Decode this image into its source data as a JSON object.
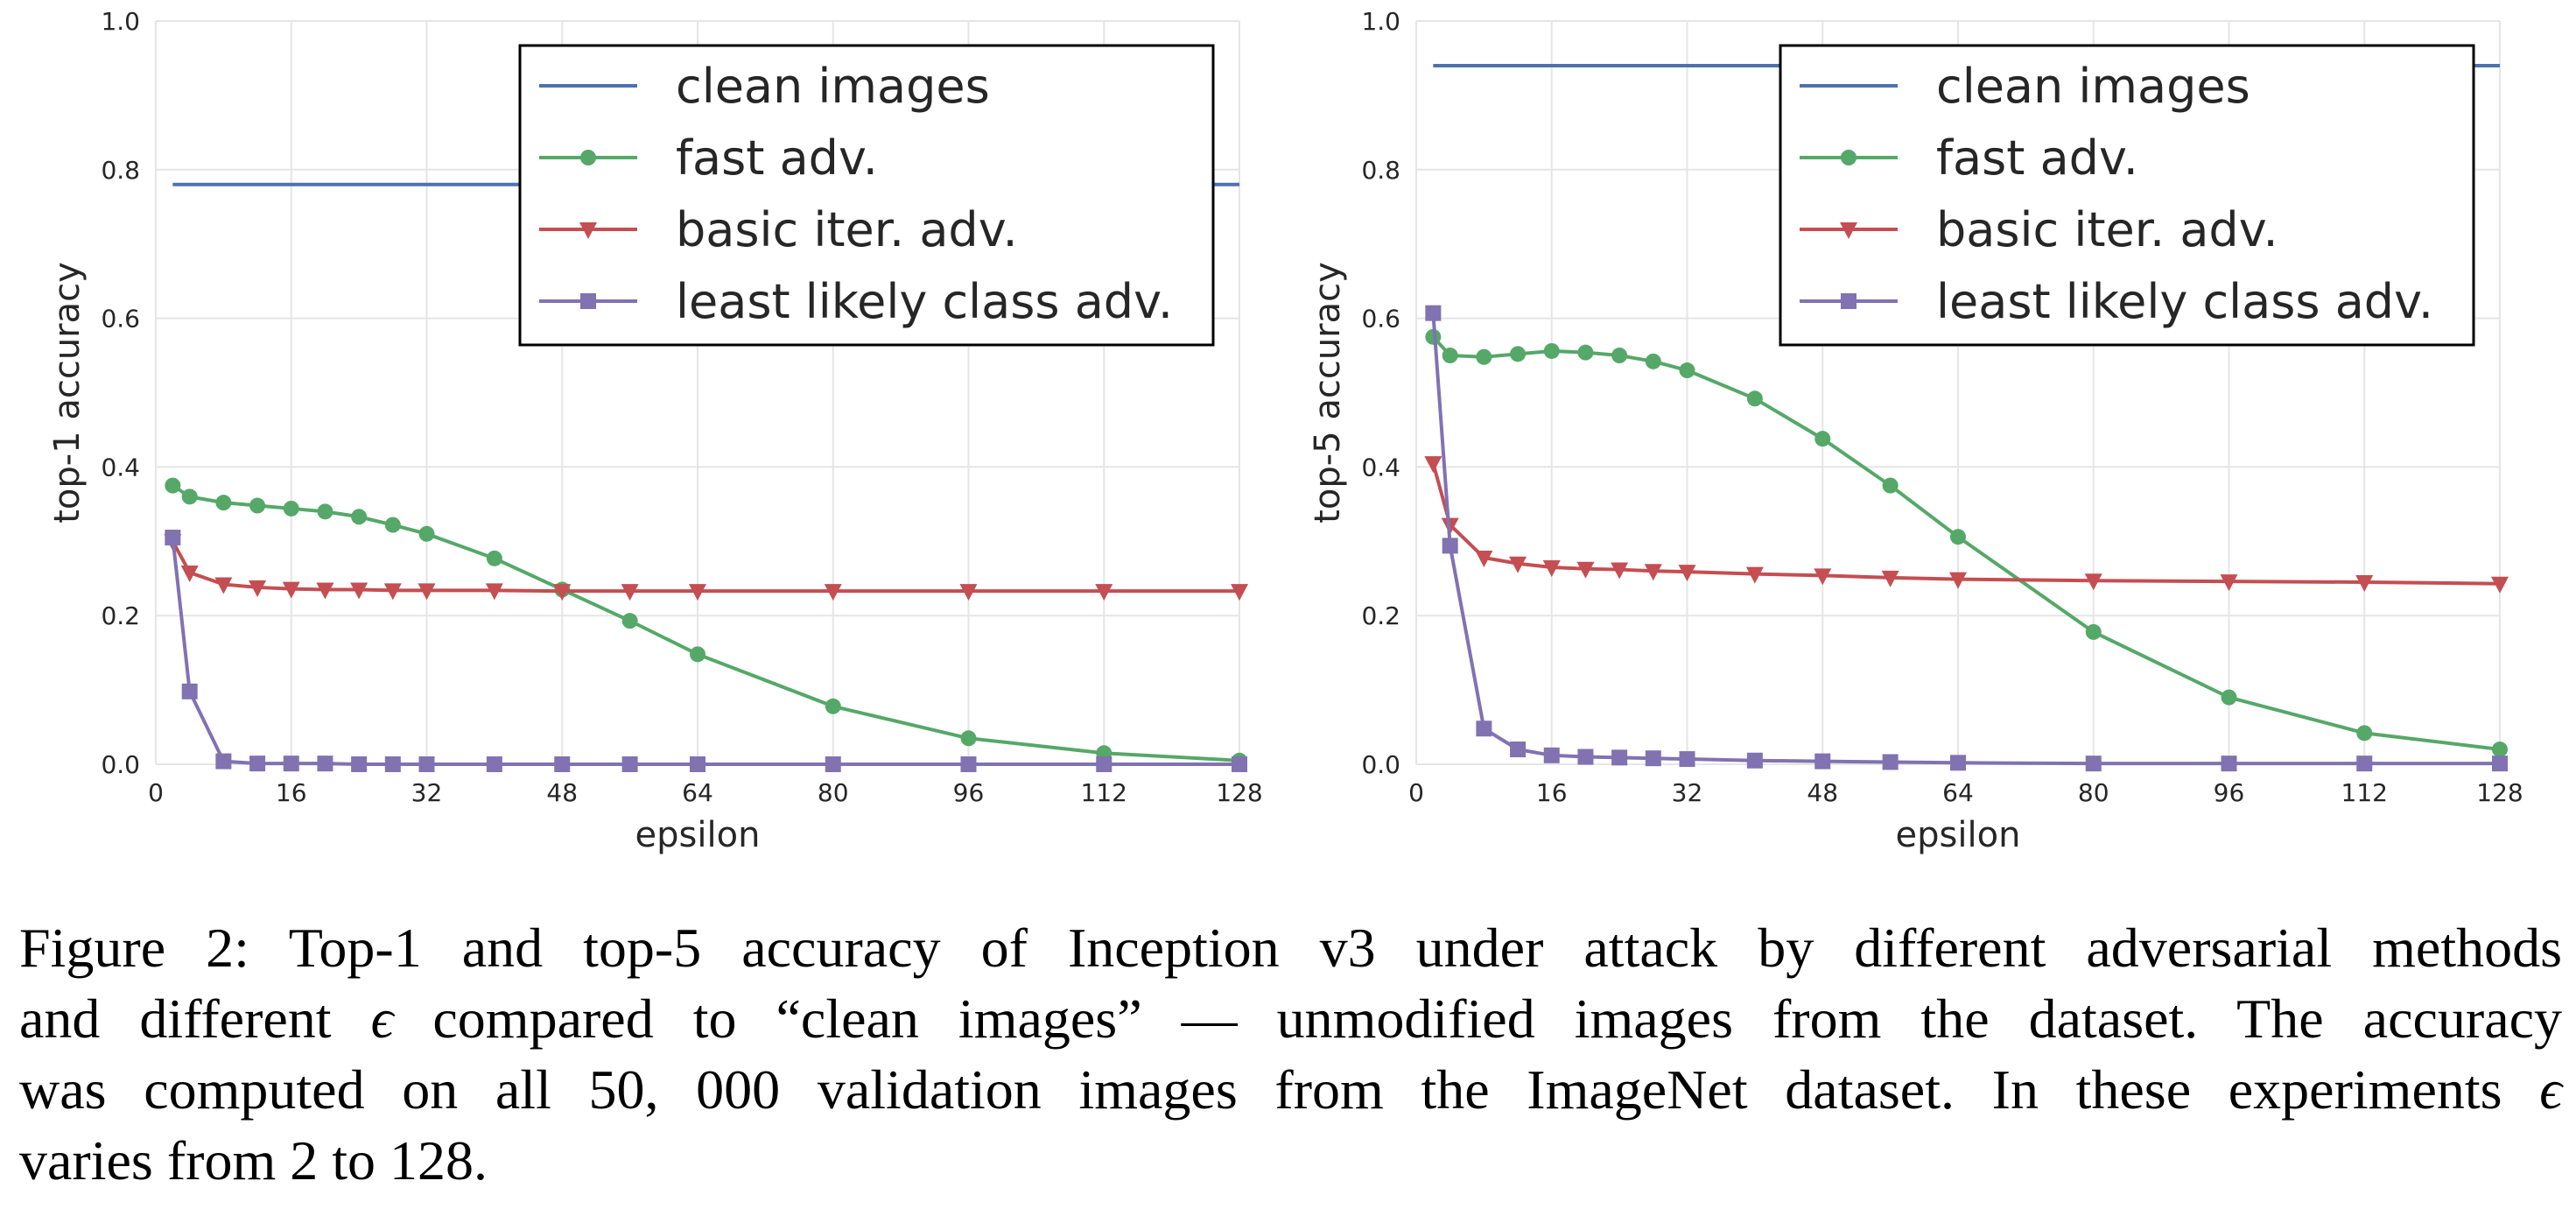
{
  "chart_data": [
    {
      "type": "line",
      "ylabel": "top-1 accuracy",
      "xlabel": "epsilon",
      "xlim": [
        0,
        128
      ],
      "ylim": [
        0.0,
        1.0
      ],
      "xticks": [
        "0",
        "16",
        "32",
        "48",
        "64",
        "80",
        "96",
        "112",
        "128"
      ],
      "yticks": [
        "0.0",
        "0.2",
        "0.4",
        "0.6",
        "0.8",
        "1.0"
      ],
      "grid": true,
      "legend": "top-right",
      "series": [
        {
          "name": "clean images",
          "color": "#4c72b0",
          "marker": "none",
          "x": [
            2,
            128
          ],
          "y": [
            0.78,
            0.78
          ]
        },
        {
          "name": "fast adv.",
          "color": "#55a868",
          "marker": "circle",
          "x": [
            2,
            4,
            8,
            12,
            16,
            20,
            24,
            28,
            32,
            40,
            48,
            56,
            64,
            80,
            96,
            112,
            128
          ],
          "y": [
            0.375,
            0.36,
            0.352,
            0.348,
            0.344,
            0.34,
            0.333,
            0.322,
            0.31,
            0.277,
            0.235,
            0.193,
            0.148,
            0.078,
            0.035,
            0.015,
            0.005
          ]
        },
        {
          "name": "basic iter. adv.",
          "color": "#c44e52",
          "marker": "triangle-down",
          "x": [
            2,
            4,
            8,
            12,
            16,
            20,
            24,
            28,
            32,
            40,
            48,
            56,
            64,
            80,
            96,
            112,
            128
          ],
          "y": [
            0.3,
            0.258,
            0.242,
            0.238,
            0.236,
            0.235,
            0.235,
            0.234,
            0.234,
            0.234,
            0.233,
            0.233,
            0.233,
            0.233,
            0.233,
            0.233,
            0.233
          ]
        },
        {
          "name": "least likely class adv.",
          "color": "#8172b2",
          "marker": "square",
          "x": [
            2,
            4,
            8,
            12,
            16,
            20,
            24,
            28,
            32,
            40,
            48,
            56,
            64,
            80,
            96,
            112,
            128
          ],
          "y": [
            0.305,
            0.098,
            0.004,
            0.001,
            0.001,
            0.001,
            0.0,
            0.0,
            0.0,
            0.0,
            0.0,
            0.0,
            0.0,
            0.0,
            0.0,
            0.0,
            0.0
          ]
        }
      ]
    },
    {
      "type": "line",
      "ylabel": "top-5 accuracy",
      "xlabel": "epsilon",
      "xlim": [
        0,
        128
      ],
      "ylim": [
        0.0,
        1.0
      ],
      "xticks": [
        "0",
        "16",
        "32",
        "48",
        "64",
        "80",
        "96",
        "112",
        "128"
      ],
      "yticks": [
        "0.0",
        "0.2",
        "0.4",
        "0.6",
        "0.8",
        "1.0"
      ],
      "grid": true,
      "legend": "top-right",
      "series": [
        {
          "name": "clean images",
          "color": "#4c72b0",
          "marker": "none",
          "x": [
            2,
            128
          ],
          "y": [
            0.94,
            0.94
          ]
        },
        {
          "name": "fast adv.",
          "color": "#55a868",
          "marker": "circle",
          "x": [
            2,
            4,
            8,
            12,
            16,
            20,
            24,
            28,
            32,
            40,
            48,
            56,
            64,
            80,
            96,
            112,
            128
          ],
          "y": [
            0.575,
            0.55,
            0.548,
            0.552,
            0.556,
            0.554,
            0.55,
            0.542,
            0.53,
            0.492,
            0.438,
            0.375,
            0.306,
            0.178,
            0.09,
            0.042,
            0.02
          ]
        },
        {
          "name": "basic iter. adv.",
          "color": "#c44e52",
          "marker": "triangle-down",
          "x": [
            2,
            4,
            8,
            12,
            16,
            20,
            24,
            28,
            32,
            40,
            48,
            56,
            64,
            80,
            96,
            112,
            128
          ],
          "y": [
            0.405,
            0.322,
            0.278,
            0.27,
            0.265,
            0.263,
            0.262,
            0.26,
            0.259,
            0.256,
            0.254,
            0.251,
            0.249,
            0.247,
            0.246,
            0.245,
            0.243
          ]
        },
        {
          "name": "least likely class adv.",
          "color": "#8172b2",
          "marker": "square",
          "x": [
            2,
            4,
            8,
            12,
            16,
            20,
            24,
            28,
            32,
            40,
            48,
            56,
            64,
            80,
            96,
            112,
            128
          ],
          "y": [
            0.607,
            0.294,
            0.048,
            0.02,
            0.012,
            0.01,
            0.009,
            0.008,
            0.007,
            0.005,
            0.004,
            0.003,
            0.002,
            0.001,
            0.001,
            0.001,
            0.001
          ]
        }
      ]
    }
  ],
  "caption": {
    "line1": "Figure 2: Top-1 and top-5 accuracy of Inception v3 under attack by different adversarial methods",
    "line2_a": "and different ",
    "line2_eps": "ϵ",
    "line2_b": " compared to “clean images” — unmodified images from the dataset. The accuracy",
    "line3_a": "was computed on all 50, 000 validation images from the ImageNet dataset. In these experiments ",
    "line3_eps": "ϵ",
    "line4": "varies from 2 to 128."
  }
}
